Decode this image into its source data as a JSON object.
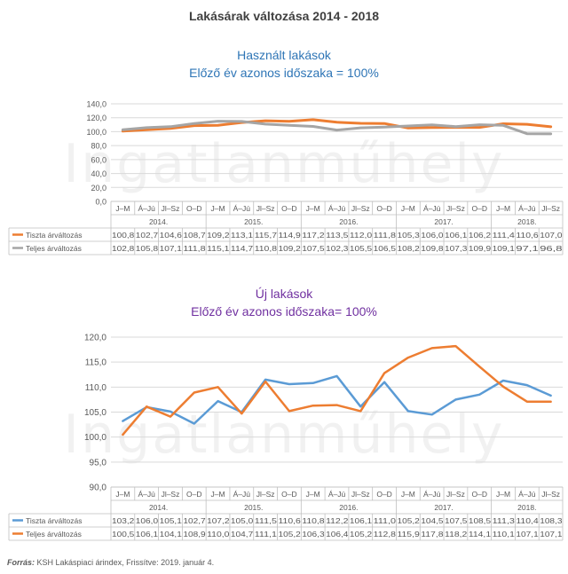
{
  "page_title": "Lakásárak változása 2014 - 2018",
  "watermark": "Ingatlanműhely",
  "source": {
    "label": "Forrás:",
    "text": "KSH Lakáspiaci árindex, Frissítve: 2019. január 4."
  },
  "colors": {
    "blue": "#5b9bd5",
    "orange": "#ed7d31",
    "gray": "#a5a5a5"
  },
  "chart_data": [
    {
      "type": "line",
      "title_line1": "Használt lakások",
      "title_line2": "Előző év azonos időszaka = 100%",
      "ylim": [
        0,
        140
      ],
      "ytick_labels": [
        "0,0",
        "20,0",
        "40,0",
        "60,0",
        "80,0",
        "100,0",
        "120,0",
        "140,0"
      ],
      "quarters": [
        "J–M",
        "Á–Jú",
        "Jl–Sz",
        "O–D",
        "J–M",
        "Á–Jú",
        "Jl–Sz",
        "O–D",
        "J–M",
        "Á–Jú",
        "Jl–Sz",
        "O–D",
        "J–M",
        "Á–Jú",
        "Jl–Sz",
        "O–D",
        "J–M",
        "Á–Jú",
        "Jl–Sz"
      ],
      "years": [
        "2014.",
        "2015.",
        "2016.",
        "2017.",
        "2018."
      ],
      "series": [
        {
          "name": "Tiszta árváltozás",
          "color": "#ed7d31",
          "values": [
            100.8,
            102.7,
            104.6,
            108.7,
            109.2,
            113.1,
            115.7,
            114.9,
            117.2,
            113.5,
            112.0,
            111.8,
            105.3,
            106.0,
            106.1,
            106.2,
            111.4,
            110.6,
            107.0
          ],
          "labels": [
            "100,8",
            "102,7",
            "104,6",
            "108,7",
            "109,2",
            "113,1",
            "115,7",
            "114,9",
            "117,2",
            "113,5",
            "112,0",
            "111,8",
            "105,3",
            "106,0",
            "106,1",
            "106,2",
            "111,4",
            "110,6",
            "107,0"
          ]
        },
        {
          "name": "Teljes árváltozás",
          "color": "#a5a5a5",
          "values": [
            102.8,
            105.8,
            107.1,
            111.8,
            115.1,
            114.7,
            110.8,
            109.2,
            107.5,
            102.3,
            105.5,
            106.5,
            108.2,
            109.8,
            107.3,
            109.9,
            109.1,
            97.1,
            96.8
          ],
          "labels": [
            "102,8",
            "105,8",
            "107,1",
            "111,8",
            "115,1",
            "114,7",
            "110,8",
            "109,2",
            "107,5",
            "102,3",
            "105,5",
            "106,5",
            "108,2",
            "109,8",
            "107,3",
            "109,9",
            "109,1",
            "97,1",
            "96,8"
          ]
        }
      ]
    },
    {
      "type": "line",
      "title_line1": "Új lakások",
      "title_line2": "Előző év azonos időszaka= 100%",
      "ylim": [
        90,
        120
      ],
      "ytick_labels": [
        "90,0",
        "95,0",
        "100,0",
        "105,0",
        "110,0",
        "115,0",
        "120,0"
      ],
      "quarters": [
        "J–M",
        "Á–Jú",
        "Jl–Sz",
        "O–D",
        "J–M",
        "Á–Jú",
        "Jl–Sz",
        "O–D",
        "J–M",
        "Á–Jú",
        "Jl–Sz",
        "O–D",
        "J–M",
        "Á–Jú",
        "Jl–Sz",
        "O–D",
        "J–M",
        "Á–Jú",
        "Jl–Sz"
      ],
      "years": [
        "2014.",
        "2015.",
        "2016.",
        "2017.",
        "2018."
      ],
      "series": [
        {
          "name": "Tiszta árváltozás",
          "color": "#5b9bd5",
          "values": [
            103.2,
            106.0,
            105.1,
            102.7,
            107.2,
            105.0,
            111.5,
            110.6,
            110.8,
            112.2,
            106.1,
            111.0,
            105.2,
            104.5,
            107.5,
            108.5,
            111.3,
            110.4,
            108.3
          ],
          "labels": [
            "103,2",
            "106,0",
            "105,1",
            "102,7",
            "107,2",
            "105,0",
            "111,5",
            "110,6",
            "110,8",
            "112,2",
            "106,1",
            "111,0",
            "105,2",
            "104,5",
            "107,5",
            "108,5",
            "111,3",
            "110,4",
            "108,3"
          ]
        },
        {
          "name": "Teljes árváltozás",
          "color": "#ed7d31",
          "values": [
            100.5,
            106.1,
            104.1,
            108.9,
            110.0,
            104.7,
            111.1,
            105.2,
            106.3,
            106.4,
            105.2,
            112.8,
            115.9,
            117.8,
            118.2,
            114.1,
            110.1,
            107.1,
            107.1
          ],
          "labels": [
            "100,5",
            "106,1",
            "104,1",
            "108,9",
            "110,0",
            "104,7",
            "111,1",
            "105,2",
            "106,3",
            "106,4",
            "105,2",
            "112,8",
            "115,9",
            "117,8",
            "118,2",
            "114,1",
            "110,1",
            "107,1",
            "107,1"
          ]
        }
      ]
    }
  ]
}
